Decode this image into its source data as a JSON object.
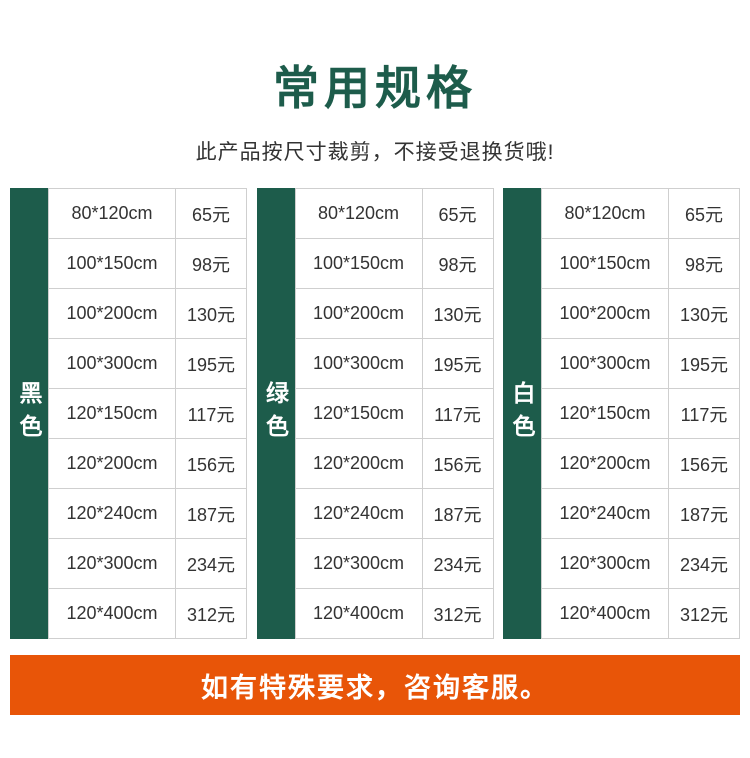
{
  "header": {
    "title": "常用规格",
    "subtitle": "此产品按尺寸裁剪，不接受退换货哦!"
  },
  "colors": {
    "brand_green": "#1d5c4b",
    "banner_orange": "#e85508",
    "cell_border": "#cfcfcf",
    "cell_text": "#333333"
  },
  "tables": [
    {
      "label": "黑色",
      "rows": [
        {
          "size": "80*120cm",
          "price": "65元"
        },
        {
          "size": "100*150cm",
          "price": "98元"
        },
        {
          "size": "100*200cm",
          "price": "130元"
        },
        {
          "size": "100*300cm",
          "price": "195元"
        },
        {
          "size": "120*150cm",
          "price": "117元"
        },
        {
          "size": "120*200cm",
          "price": "156元"
        },
        {
          "size": "120*240cm",
          "price": "187元"
        },
        {
          "size": "120*300cm",
          "price": "234元"
        },
        {
          "size": "120*400cm",
          "price": "312元"
        }
      ]
    },
    {
      "label": "绿色",
      "rows": [
        {
          "size": "80*120cm",
          "price": "65元"
        },
        {
          "size": "100*150cm",
          "price": "98元"
        },
        {
          "size": "100*200cm",
          "price": "130元"
        },
        {
          "size": "100*300cm",
          "price": "195元"
        },
        {
          "size": "120*150cm",
          "price": "117元"
        },
        {
          "size": "120*200cm",
          "price": "156元"
        },
        {
          "size": "120*240cm",
          "price": "187元"
        },
        {
          "size": "120*300cm",
          "price": "234元"
        },
        {
          "size": "120*400cm",
          "price": "312元"
        }
      ]
    },
    {
      "label": "白色",
      "rows": [
        {
          "size": "80*120cm",
          "price": "65元"
        },
        {
          "size": "100*150cm",
          "price": "98元"
        },
        {
          "size": "100*200cm",
          "price": "130元"
        },
        {
          "size": "100*300cm",
          "price": "195元"
        },
        {
          "size": "120*150cm",
          "price": "117元"
        },
        {
          "size": "120*200cm",
          "price": "156元"
        },
        {
          "size": "120*240cm",
          "price": "187元"
        },
        {
          "size": "120*300cm",
          "price": "234元"
        },
        {
          "size": "120*400cm",
          "price": "312元"
        }
      ]
    }
  ],
  "footer": {
    "text": "如有特殊要求，咨询客服。"
  }
}
